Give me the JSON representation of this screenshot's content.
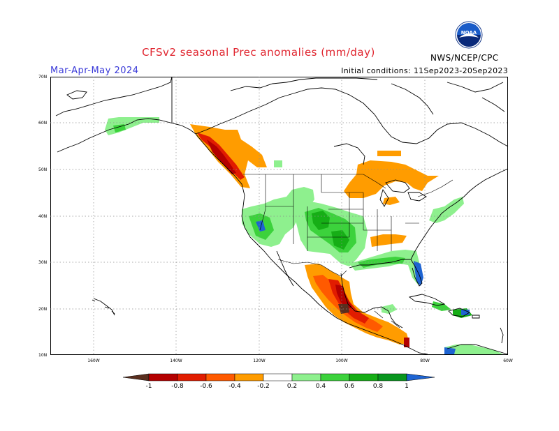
{
  "header": {
    "title": "CFSv2 seasonal Prec anomalies (mm/day)",
    "period": "Mar-Apr-May 2024",
    "initial_conditions": "Initial conditions: 11Sep2023-20Sep2023",
    "agency": "NWS/NCEP/CPC",
    "logo_text": "NOAA"
  },
  "axes": {
    "lat_labels": [
      "70N",
      "60N",
      "50N",
      "40N",
      "30N",
      "20N",
      "10N"
    ],
    "lon_labels": [
      "160W",
      "140W",
      "120W",
      "100W",
      "80W",
      "60W"
    ]
  },
  "colorbar": {
    "labels": [
      "-1",
      "-0.8",
      "-0.6",
      "-0.4",
      "-0.2",
      "0.2",
      "0.4",
      "0.6",
      "0.8",
      "1"
    ],
    "colors": [
      "#5a2e1e",
      "#b40000",
      "#e11c00",
      "#ff5a00",
      "#ff9c00",
      "#ffffff",
      "#8ef08e",
      "#3cd23c",
      "#16ae16",
      "#08961e",
      "#1e64d2"
    ]
  },
  "colors": {
    "title": "#e0242e",
    "period": "#3a3ad8",
    "grid": "#8c8c8c",
    "coast": "#000000"
  }
}
